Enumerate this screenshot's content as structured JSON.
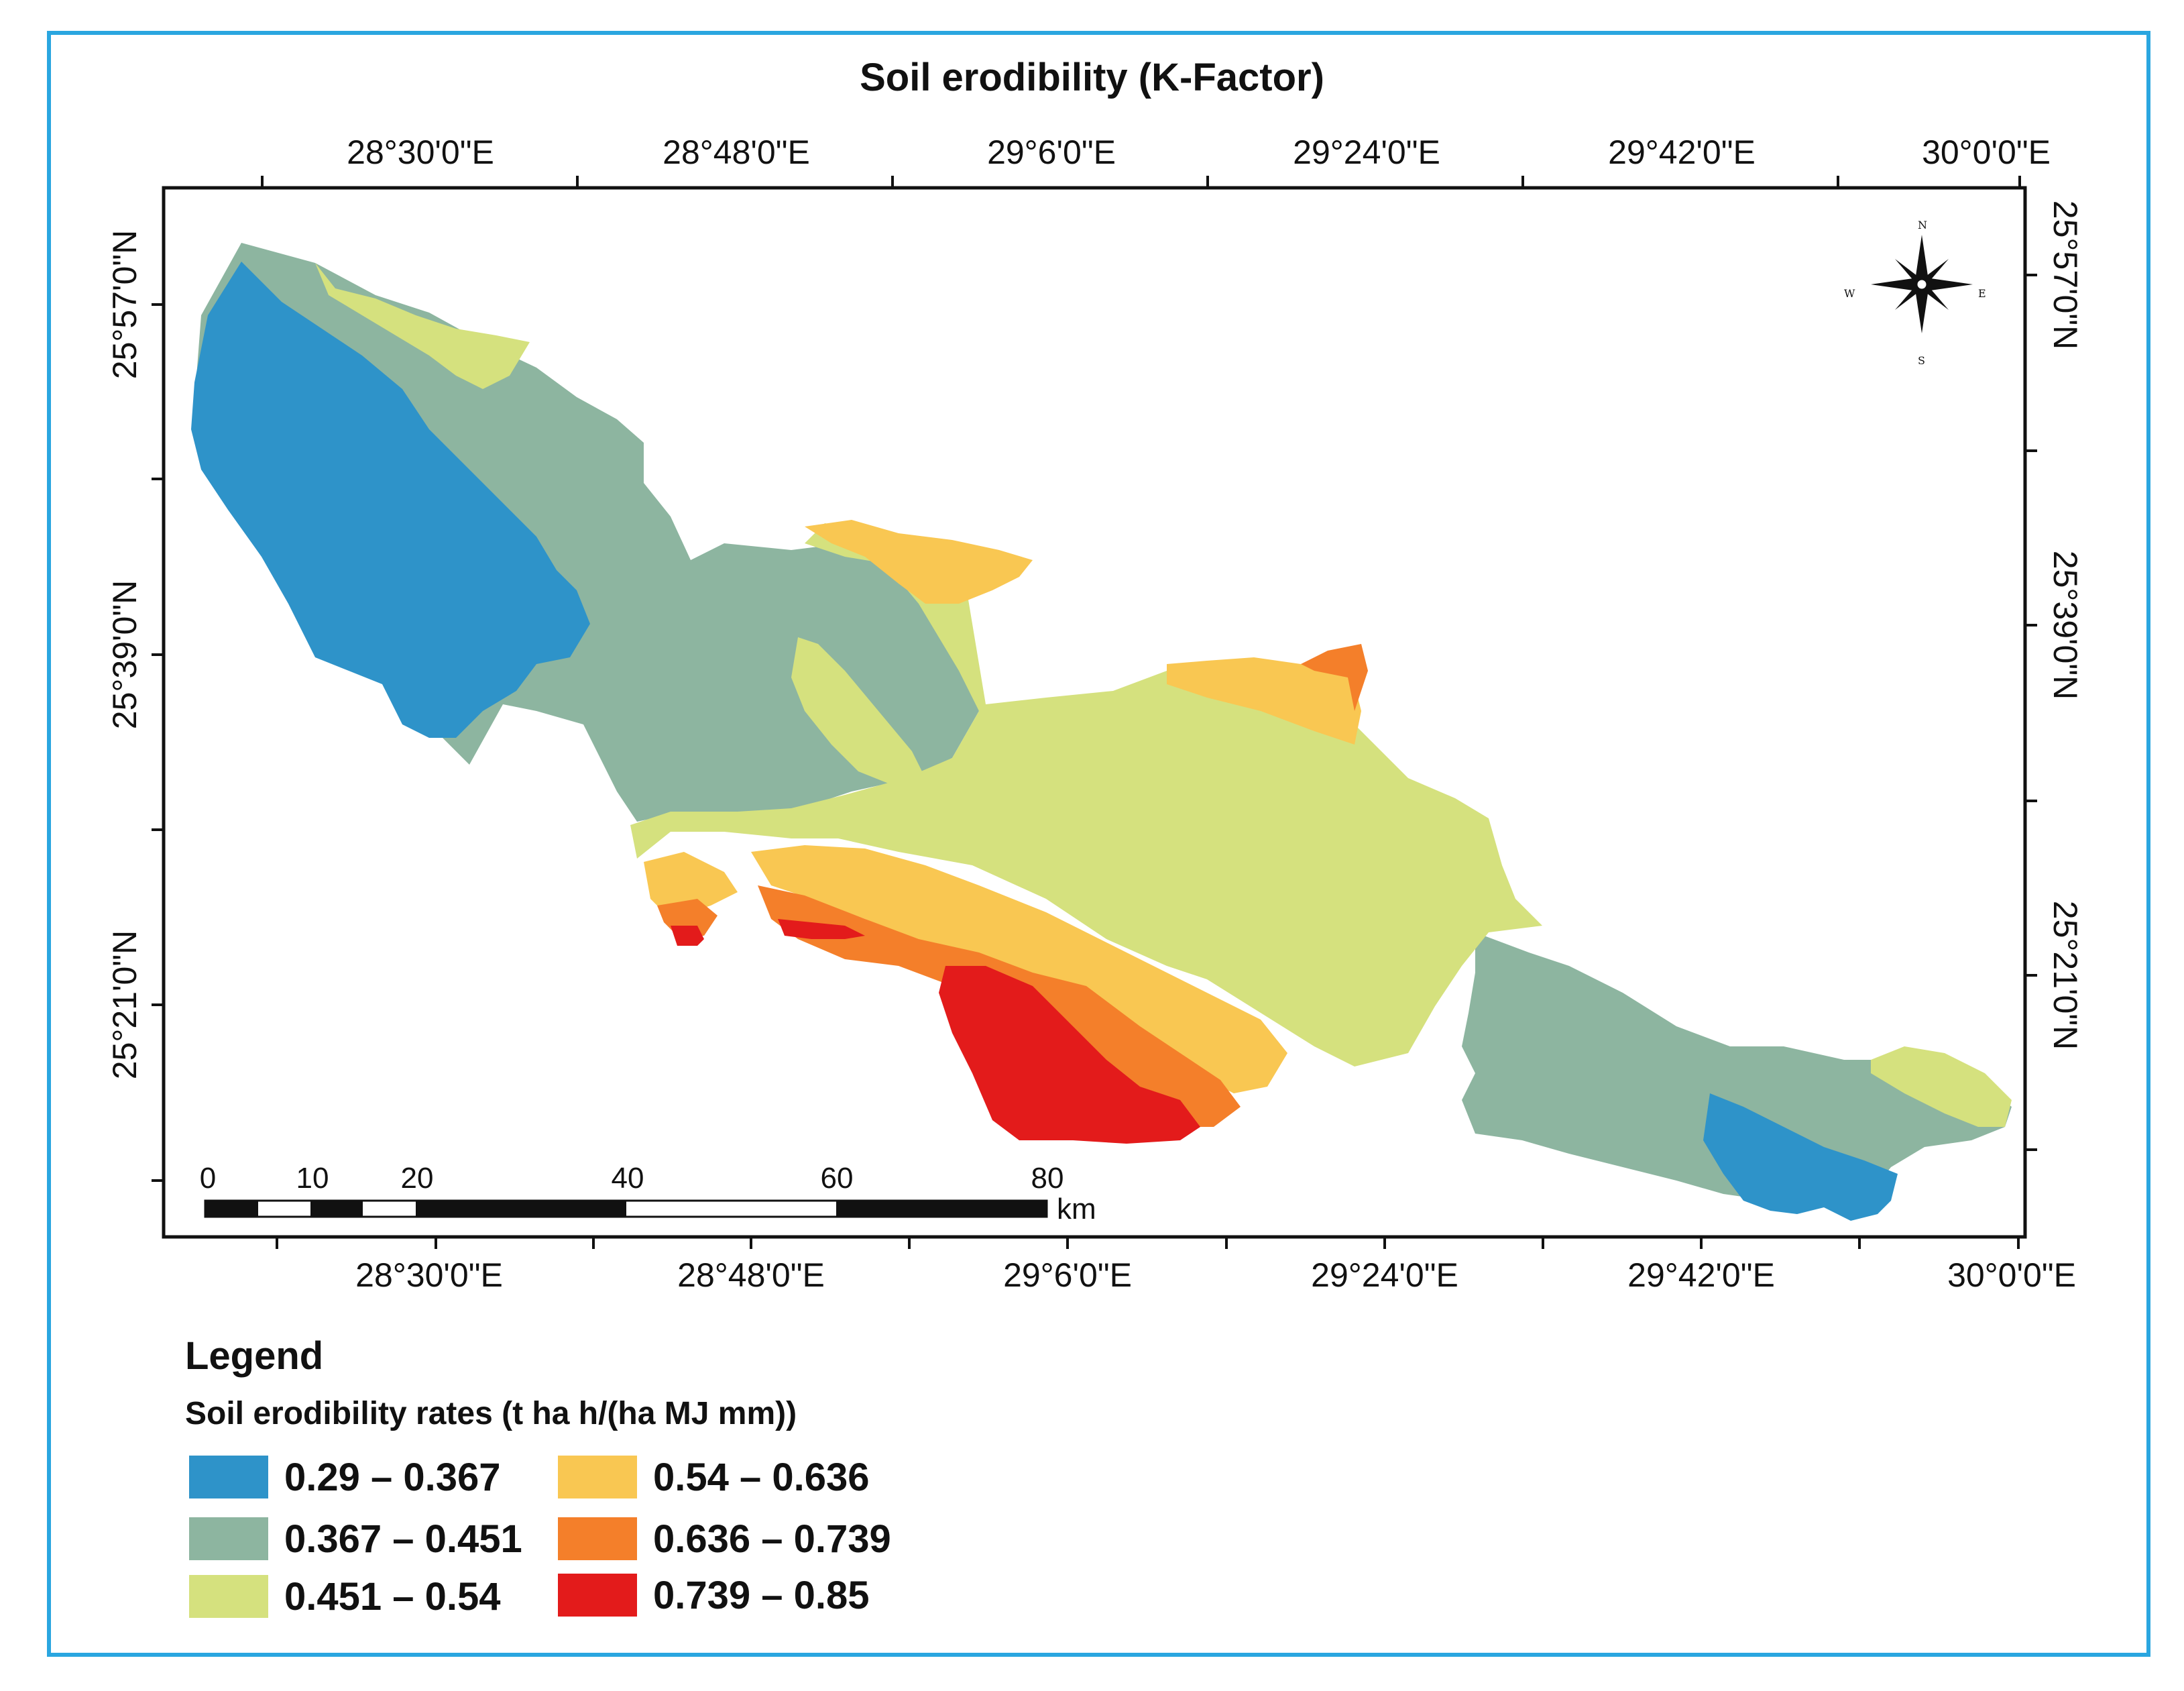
{
  "title": "Soil erodibility (K-Factor)",
  "axes": {
    "top_ticks": [
      "28°30'0\"E",
      "28°48'0\"E",
      "29°6'0\"E",
      "29°24'0\"E",
      "29°42'0\"E",
      "30°0'0\"E"
    ],
    "bottom_ticks": [
      "28°30'0\"E",
      "28°48'0\"E",
      "29°6'0\"E",
      "29°24'0\"E",
      "29°42'0\"E",
      "30°0'0\"E"
    ],
    "left_ticks": [
      "25°57'0\"N",
      "25°39'0\"N",
      "25°21'0\"N"
    ],
    "right_ticks": [
      "25°57'0\"N",
      "25°39'0\"N",
      "25°21'0\"N"
    ]
  },
  "scale_bar": {
    "labels": [
      "0",
      "10",
      "20",
      "40",
      "60",
      "80"
    ],
    "unit": "km"
  },
  "north_arrow": {
    "n": "N",
    "s": "S",
    "e": "E",
    "w": "W"
  },
  "legend": {
    "title": "Legend",
    "subtitle": "Soil erodibility rates (t ha h/(ha MJ mm))",
    "items": [
      {
        "label": "0.29 – 0.367",
        "color": "#2e93c9"
      },
      {
        "label": "0.367 – 0.451",
        "color": "#8db5a0"
      },
      {
        "label": "0.451 – 0.54",
        "color": "#d5e17e"
      },
      {
        "label": "0.54 – 0.636",
        "color": "#f9c752"
      },
      {
        "label": "0.636 – 0.739",
        "color": "#f47f2a"
      },
      {
        "label": "0.739 – 0.85",
        "color": "#e31b1b"
      }
    ]
  },
  "colors": {
    "frame": "#2aa6e0",
    "neatline": "#111111"
  }
}
